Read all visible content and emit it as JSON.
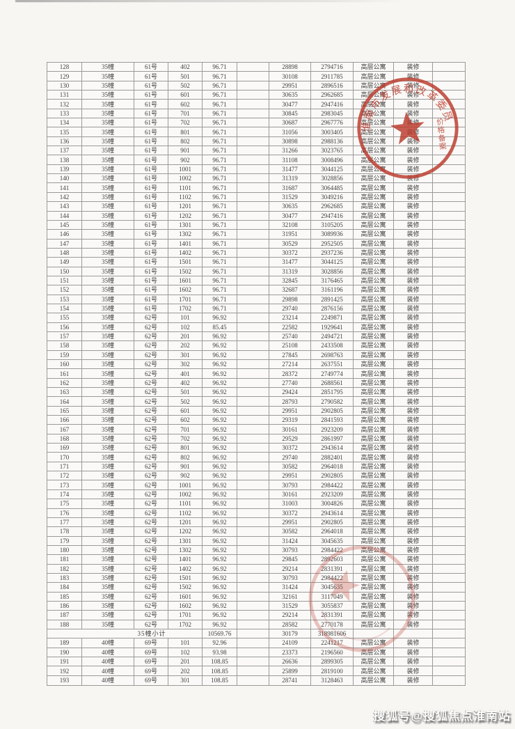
{
  "page": {
    "background_color": "#f8f6f3",
    "grid_color": "#9a9a9a",
    "text_color": "#3e3e3e",
    "stamp_color": "#bb3a2c",
    "watermark_text": "搜狐号@搜狐焦点淮南站"
  },
  "stamp": {
    "arc_text": "淮南市发展和改革委员会",
    "side_text": "价格备案",
    "shape": "red circular seal with five-pointed star"
  },
  "table": {
    "rows": [
      [
        "128",
        "35幢",
        "61号",
        "402",
        "96.71",
        "28898",
        "2794716",
        "高层公寓",
        "装修"
      ],
      [
        "129",
        "35幢",
        "61号",
        "501",
        "96.71",
        "30108",
        "2911785",
        "高层公寓",
        "装修"
      ],
      [
        "130",
        "35幢",
        "61号",
        "502",
        "96.71",
        "29951",
        "2896516",
        "高层公寓",
        "装修"
      ],
      [
        "131",
        "35幢",
        "61号",
        "601",
        "96.71",
        "30635",
        "2962685",
        "高层公寓",
        "装修"
      ],
      [
        "132",
        "35幢",
        "61号",
        "602",
        "96.71",
        "30477",
        "2947416",
        "高层公寓",
        "装修"
      ],
      [
        "133",
        "35幢",
        "61号",
        "701",
        "96.71",
        "30845",
        "2983045",
        "高层公寓",
        "装修"
      ],
      [
        "134",
        "35幢",
        "61号",
        "702",
        "96.71",
        "30687",
        "2967776",
        "高层公寓",
        "装修"
      ],
      [
        "135",
        "35幢",
        "61号",
        "801",
        "96.71",
        "31056",
        "3003405",
        "高层公寓",
        "装修"
      ],
      [
        "136",
        "35幢",
        "61号",
        "802",
        "96.71",
        "30898",
        "2988136",
        "高层公寓",
        "装修"
      ],
      [
        "137",
        "35幢",
        "61号",
        "901",
        "96.71",
        "31266",
        "3023765",
        "高层公寓",
        "装修"
      ],
      [
        "138",
        "35幢",
        "61号",
        "902",
        "96.71",
        "31108",
        "3008496",
        "高层公寓",
        "装修"
      ],
      [
        "139",
        "35幢",
        "61号",
        "1001",
        "96.71",
        "31477",
        "3044125",
        "高层公寓",
        "装修"
      ],
      [
        "140",
        "35幢",
        "61号",
        "1002",
        "96.71",
        "31319",
        "3028856",
        "高层公寓",
        "装修"
      ],
      [
        "141",
        "35幢",
        "61号",
        "1101",
        "96.71",
        "31687",
        "3064485",
        "高层公寓",
        "装修"
      ],
      [
        "142",
        "35幢",
        "61号",
        "1102",
        "96.71",
        "31529",
        "3049216",
        "高层公寓",
        "装修"
      ],
      [
        "143",
        "35幢",
        "61号",
        "1201",
        "96.71",
        "30635",
        "2962685",
        "高层公寓",
        "装修"
      ],
      [
        "144",
        "35幢",
        "61号",
        "1202",
        "96.71",
        "30477",
        "2947416",
        "高层公寓",
        "装修"
      ],
      [
        "145",
        "35幢",
        "61号",
        "1301",
        "96.71",
        "32108",
        "3105205",
        "高层公寓",
        "装修"
      ],
      [
        "146",
        "35幢",
        "61号",
        "1302",
        "96.71",
        "31951",
        "3089936",
        "高层公寓",
        "装修"
      ],
      [
        "147",
        "35幢",
        "61号",
        "1401",
        "96.71",
        "30529",
        "2952505",
        "高层公寓",
        "装修"
      ],
      [
        "148",
        "35幢",
        "61号",
        "1402",
        "96.71",
        "30372",
        "2937236",
        "高层公寓",
        "装修"
      ],
      [
        "149",
        "35幢",
        "61号",
        "1501",
        "96.71",
        "31477",
        "3044125",
        "高层公寓",
        "装修"
      ],
      [
        "150",
        "35幢",
        "61号",
        "1502",
        "96.71",
        "31319",
        "3028856",
        "高层公寓",
        "装修"
      ],
      [
        "151",
        "35幢",
        "61号",
        "1601",
        "96.71",
        "32845",
        "3176465",
        "高层公寓",
        "装修"
      ],
      [
        "152",
        "35幢",
        "61号",
        "1602",
        "96.71",
        "32687",
        "3161196",
        "高层公寓",
        "装修"
      ],
      [
        "153",
        "35幢",
        "61号",
        "1701",
        "96.71",
        "29898",
        "2891425",
        "高层公寓",
        "装修"
      ],
      [
        "154",
        "35幢",
        "61号",
        "1702",
        "96.71",
        "29740",
        "2876156",
        "高层公寓",
        "装修"
      ],
      [
        "155",
        "35幢",
        "62号",
        "101",
        "96.92",
        "23214",
        "2249871",
        "高层公寓",
        "装修"
      ],
      [
        "156",
        "35幢",
        "62号",
        "102",
        "85.45",
        "22582",
        "1929641",
        "高层公寓",
        "装修"
      ],
      [
        "157",
        "35幢",
        "62号",
        "201",
        "96.92",
        "25740",
        "2494721",
        "高层公寓",
        "装修"
      ],
      [
        "158",
        "35幢",
        "62号",
        "202",
        "96.92",
        "25108",
        "2433508",
        "高层公寓",
        "装修"
      ],
      [
        "159",
        "35幢",
        "62号",
        "301",
        "96.92",
        "27845",
        "2698763",
        "高层公寓",
        "装修"
      ],
      [
        "160",
        "35幢",
        "62号",
        "302",
        "96.92",
        "27214",
        "2637551",
        "高层公寓",
        "装修"
      ],
      [
        "161",
        "35幢",
        "62号",
        "401",
        "96.92",
        "28372",
        "2749774",
        "高层公寓",
        "装修"
      ],
      [
        "162",
        "35幢",
        "62号",
        "402",
        "96.92",
        "27740",
        "2688561",
        "高层公寓",
        "装修"
      ],
      [
        "163",
        "35幢",
        "62号",
        "501",
        "96.92",
        "29424",
        "2851795",
        "高层公寓",
        "装修"
      ],
      [
        "164",
        "35幢",
        "62号",
        "502",
        "96.92",
        "28793",
        "2790582",
        "高层公寓",
        "装修"
      ],
      [
        "165",
        "35幢",
        "62号",
        "601",
        "96.92",
        "29951",
        "2902805",
        "高层公寓",
        "装修"
      ],
      [
        "166",
        "35幢",
        "62号",
        "602",
        "96.92",
        "29319",
        "2841593",
        "高层公寓",
        "装修"
      ],
      [
        "167",
        "35幢",
        "62号",
        "701",
        "96.92",
        "30161",
        "2923209",
        "高层公寓",
        "装修"
      ],
      [
        "168",
        "35幢",
        "62号",
        "702",
        "96.92",
        "29529",
        "2861997",
        "高层公寓",
        "装修"
      ],
      [
        "169",
        "35幢",
        "62号",
        "801",
        "96.92",
        "30372",
        "2943614",
        "高层公寓",
        "装修"
      ],
      [
        "170",
        "35幢",
        "62号",
        "802",
        "96.92",
        "29740",
        "2882401",
        "高层公寓",
        "装修"
      ],
      [
        "171",
        "35幢",
        "62号",
        "901",
        "96.92",
        "30582",
        "2964018",
        "高层公寓",
        "装修"
      ],
      [
        "172",
        "35幢",
        "62号",
        "902",
        "96.92",
        "29951",
        "2902805",
        "高层公寓",
        "装修"
      ],
      [
        "173",
        "35幢",
        "62号",
        "1001",
        "96.92",
        "30793",
        "2984422",
        "高层公寓",
        "装修"
      ],
      [
        "174",
        "35幢",
        "62号",
        "1002",
        "96.92",
        "30161",
        "2923209",
        "高层公寓",
        "装修"
      ],
      [
        "175",
        "35幢",
        "62号",
        "1101",
        "96.92",
        "31003",
        "3004826",
        "高层公寓",
        "装修"
      ],
      [
        "176",
        "35幢",
        "62号",
        "1102",
        "96.92",
        "30372",
        "2943614",
        "高层公寓",
        "装修"
      ],
      [
        "177",
        "35幢",
        "62号",
        "1201",
        "96.92",
        "29951",
        "2902805",
        "高层公寓",
        "装修"
      ],
      [
        "178",
        "35幢",
        "62号",
        "1202",
        "96.92",
        "30582",
        "2964018",
        "高层公寓",
        "装修"
      ],
      [
        "179",
        "35幢",
        "62号",
        "1301",
        "96.92",
        "31424",
        "3045635",
        "高层公寓",
        "装修"
      ],
      [
        "180",
        "35幢",
        "62号",
        "1302",
        "96.92",
        "30793",
        "2984422",
        "高层公寓",
        "装修"
      ],
      [
        "181",
        "35幢",
        "62号",
        "1401",
        "96.92",
        "29845",
        "2892603",
        "高层公寓",
        "装修"
      ],
      [
        "182",
        "35幢",
        "62号",
        "1402",
        "96.92",
        "29214",
        "2831391",
        "高层公寓",
        "装修"
      ],
      [
        "183",
        "35幢",
        "62号",
        "1501",
        "96.92",
        "30793",
        "2984422",
        "高层公寓",
        "装修"
      ],
      [
        "184",
        "35幢",
        "62号",
        "1502",
        "96.92",
        "31424",
        "3045635",
        "高层公寓",
        "装修"
      ],
      [
        "185",
        "35幢",
        "62号",
        "1601",
        "96.92",
        "32161",
        "3117049",
        "高层公寓",
        "装修"
      ],
      [
        "186",
        "35幢",
        "62号",
        "1602",
        "96.92",
        "31529",
        "3055837",
        "高层公寓",
        "装修"
      ],
      [
        "187",
        "35幢",
        "62号",
        "1701",
        "96.92",
        "29214",
        "2831391",
        "高层公寓",
        "装修"
      ],
      [
        "188",
        "35幢",
        "62号",
        "1702",
        "96.92",
        "28582",
        "2770178",
        "高层公寓",
        "装修"
      ],
      {
        "subtotal": true,
        "label": "35幢小计",
        "area": "10569.76",
        "unit_price": "30179",
        "total_price": "318981606"
      },
      [
        "189",
        "40幢",
        "69号",
        "101",
        "92.96",
        "24109",
        "2241217",
        "高层公寓",
        "装修"
      ],
      [
        "190",
        "40幢",
        "69号",
        "102",
        "93.98",
        "23373",
        "2196560",
        "高层公寓",
        "装修"
      ],
      [
        "191",
        "40幢",
        "69号",
        "201",
        "108.85",
        "26636",
        "2899305",
        "高层公寓",
        "装修"
      ],
      [
        "192",
        "40幢",
        "69号",
        "202",
        "108.85",
        "25899",
        "2819100",
        "高层公寓",
        "装修"
      ],
      [
        "193",
        "40幢",
        "69号",
        "301",
        "108.85",
        "28741",
        "3128463",
        "高层公寓",
        "装修"
      ]
    ]
  }
}
